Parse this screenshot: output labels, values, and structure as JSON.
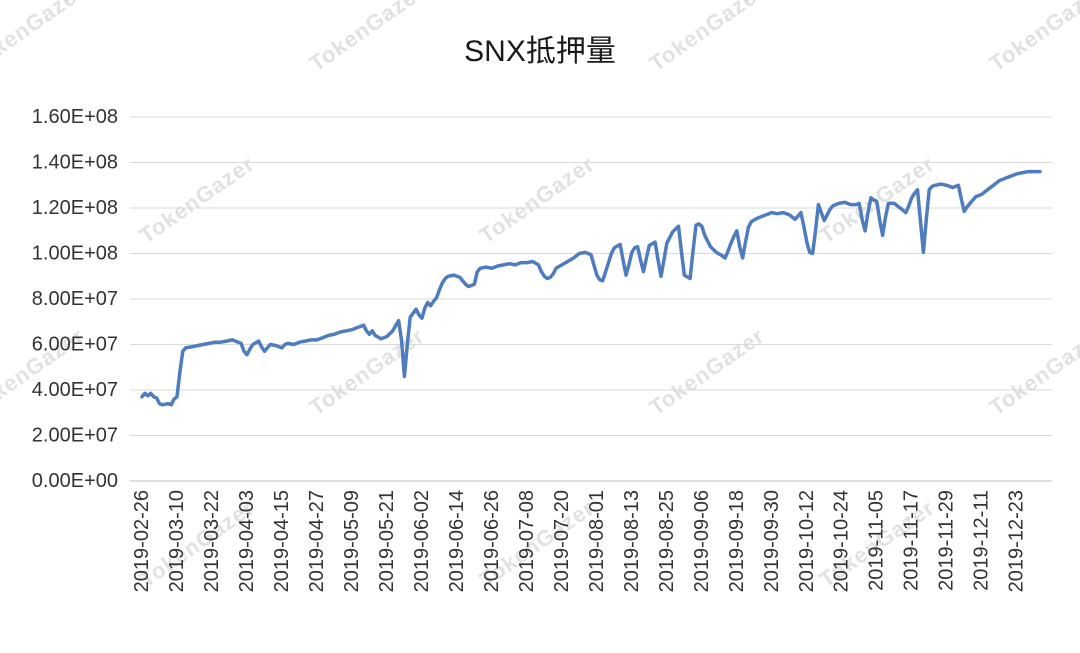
{
  "page": {
    "watermark_text": "TokenGazer"
  },
  "chart_data": {
    "type": "line",
    "title": "SNX抵押量",
    "xlabel": "",
    "ylabel": "",
    "legend": "none",
    "grid": true,
    "line_color": "#4E7CBF",
    "ylim": [
      0,
      160000000
    ],
    "y_tick_labels": [
      "0.00E+00",
      "2.00E+07",
      "4.00E+07",
      "6.00E+07",
      "8.00E+07",
      "1.00E+08",
      "1.20E+08",
      "1.40E+08",
      "1.60E+08"
    ],
    "x_tick_labels": [
      "2019-02-26",
      "2019-03-10",
      "2019-03-22",
      "2019-04-03",
      "2019-04-15",
      "2019-04-27",
      "2019-05-09",
      "2019-05-21",
      "2019-06-02",
      "2019-06-14",
      "2019-06-26",
      "2019-07-08",
      "2019-07-20",
      "2019-08-01",
      "2019-08-13",
      "2019-08-25",
      "2019-09-06",
      "2019-09-18",
      "2019-09-30",
      "2019-10-12",
      "2019-10-24",
      "2019-11-05",
      "2019-11-17",
      "2019-11-29",
      "2019-12-11",
      "2019-12-23"
    ],
    "series": [
      {
        "name": "SNX抵押量",
        "points": [
          [
            "2019-02-26",
            37000000
          ],
          [
            "2019-02-27",
            38500000
          ],
          [
            "2019-02-28",
            37500000
          ],
          [
            "2019-03-01",
            38500000
          ],
          [
            "2019-03-02",
            37000000
          ],
          [
            "2019-03-03",
            36500000
          ],
          [
            "2019-03-04",
            34000000
          ],
          [
            "2019-03-05",
            33500000
          ],
          [
            "2019-03-07",
            34000000
          ],
          [
            "2019-03-08",
            33500000
          ],
          [
            "2019-03-09",
            36000000
          ],
          [
            "2019-03-10",
            37000000
          ],
          [
            "2019-03-11",
            48000000
          ],
          [
            "2019-03-12",
            57000000
          ],
          [
            "2019-03-13",
            58500000
          ],
          [
            "2019-03-15",
            59000000
          ],
          [
            "2019-03-17",
            59500000
          ],
          [
            "2019-03-19",
            60000000
          ],
          [
            "2019-03-21",
            60500000
          ],
          [
            "2019-03-23",
            61000000
          ],
          [
            "2019-03-25",
            61000000
          ],
          [
            "2019-03-27",
            61500000
          ],
          [
            "2019-03-29",
            62000000
          ],
          [
            "2019-03-31",
            61000000
          ],
          [
            "2019-04-01",
            60500000
          ],
          [
            "2019-04-02",
            57000000
          ],
          [
            "2019-04-03",
            55500000
          ],
          [
            "2019-04-04",
            58000000
          ],
          [
            "2019-04-05",
            60000000
          ],
          [
            "2019-04-07",
            61500000
          ],
          [
            "2019-04-08",
            59000000
          ],
          [
            "2019-04-09",
            57000000
          ],
          [
            "2019-04-10",
            58500000
          ],
          [
            "2019-04-11",
            60000000
          ],
          [
            "2019-04-13",
            59500000
          ],
          [
            "2019-04-15",
            58500000
          ],
          [
            "2019-04-16",
            60000000
          ],
          [
            "2019-04-17",
            60500000
          ],
          [
            "2019-04-19",
            60000000
          ],
          [
            "2019-04-21",
            61000000
          ],
          [
            "2019-04-23",
            61500000
          ],
          [
            "2019-04-25",
            62000000
          ],
          [
            "2019-04-27",
            62000000
          ],
          [
            "2019-04-29",
            63000000
          ],
          [
            "2019-05-01",
            64000000
          ],
          [
            "2019-05-03",
            64500000
          ],
          [
            "2019-05-05",
            65500000
          ],
          [
            "2019-05-07",
            66000000
          ],
          [
            "2019-05-09",
            66500000
          ],
          [
            "2019-05-11",
            67500000
          ],
          [
            "2019-05-13",
            68500000
          ],
          [
            "2019-05-14",
            66000000
          ],
          [
            "2019-05-15",
            64500000
          ],
          [
            "2019-05-16",
            66000000
          ],
          [
            "2019-05-17",
            64000000
          ],
          [
            "2019-05-19",
            62500000
          ],
          [
            "2019-05-21",
            63500000
          ],
          [
            "2019-05-23",
            66000000
          ],
          [
            "2019-05-25",
            70500000
          ],
          [
            "2019-05-26",
            62000000
          ],
          [
            "2019-05-27",
            46000000
          ],
          [
            "2019-05-28",
            60000000
          ],
          [
            "2019-05-29",
            72000000
          ],
          [
            "2019-05-31",
            75500000
          ],
          [
            "2019-06-01",
            73000000
          ],
          [
            "2019-06-02",
            71500000
          ],
          [
            "2019-06-03",
            76000000
          ],
          [
            "2019-06-04",
            78500000
          ],
          [
            "2019-06-05",
            77000000
          ],
          [
            "2019-06-06",
            79000000
          ],
          [
            "2019-06-07",
            80500000
          ],
          [
            "2019-06-08",
            84000000
          ],
          [
            "2019-06-09",
            87000000
          ],
          [
            "2019-06-10",
            89000000
          ],
          [
            "2019-06-11",
            90000000
          ],
          [
            "2019-06-13",
            90500000
          ],
          [
            "2019-06-15",
            89500000
          ],
          [
            "2019-06-17",
            86500000
          ],
          [
            "2019-06-18",
            85500000
          ],
          [
            "2019-06-20",
            86500000
          ],
          [
            "2019-06-21",
            92000000
          ],
          [
            "2019-06-22",
            93500000
          ],
          [
            "2019-06-24",
            94000000
          ],
          [
            "2019-06-26",
            93500000
          ],
          [
            "2019-06-28",
            94500000
          ],
          [
            "2019-06-30",
            95000000
          ],
          [
            "2019-07-02",
            95500000
          ],
          [
            "2019-07-04",
            95000000
          ],
          [
            "2019-07-06",
            96000000
          ],
          [
            "2019-07-08",
            96000000
          ],
          [
            "2019-07-10",
            96500000
          ],
          [
            "2019-07-12",
            95000000
          ],
          [
            "2019-07-13",
            92000000
          ],
          [
            "2019-07-14",
            90000000
          ],
          [
            "2019-07-15",
            89000000
          ],
          [
            "2019-07-16",
            89500000
          ],
          [
            "2019-07-17",
            91000000
          ],
          [
            "2019-07-18",
            93500000
          ],
          [
            "2019-07-20",
            95000000
          ],
          [
            "2019-07-22",
            96500000
          ],
          [
            "2019-07-24",
            98000000
          ],
          [
            "2019-07-26",
            100000000
          ],
          [
            "2019-07-28",
            100500000
          ],
          [
            "2019-07-30",
            99500000
          ],
          [
            "2019-07-31",
            95000000
          ],
          [
            "2019-08-01",
            90500000
          ],
          [
            "2019-08-02",
            88500000
          ],
          [
            "2019-08-03",
            88000000
          ],
          [
            "2019-08-05",
            96000000
          ],
          [
            "2019-08-06",
            100000000
          ],
          [
            "2019-08-07",
            102500000
          ],
          [
            "2019-08-09",
            104000000
          ],
          [
            "2019-08-10",
            97000000
          ],
          [
            "2019-08-11",
            90500000
          ],
          [
            "2019-08-12",
            95000000
          ],
          [
            "2019-08-13",
            100500000
          ],
          [
            "2019-08-14",
            102500000
          ],
          [
            "2019-08-15",
            103000000
          ],
          [
            "2019-08-16",
            97000000
          ],
          [
            "2019-08-17",
            92000000
          ],
          [
            "2019-08-18",
            98000000
          ],
          [
            "2019-08-19",
            103500000
          ],
          [
            "2019-08-21",
            105000000
          ],
          [
            "2019-08-22",
            97000000
          ],
          [
            "2019-08-23",
            90000000
          ],
          [
            "2019-08-24",
            97000000
          ],
          [
            "2019-08-25",
            104500000
          ],
          [
            "2019-08-27",
            109500000
          ],
          [
            "2019-08-29",
            112000000
          ],
          [
            "2019-08-30",
            101000000
          ],
          [
            "2019-08-31",
            90500000
          ],
          [
            "2019-09-02",
            89000000
          ],
          [
            "2019-09-03",
            101000000
          ],
          [
            "2019-09-04",
            112500000
          ],
          [
            "2019-09-05",
            113000000
          ],
          [
            "2019-09-06",
            112000000
          ],
          [
            "2019-09-07",
            108000000
          ],
          [
            "2019-09-09",
            103000000
          ],
          [
            "2019-09-11",
            100500000
          ],
          [
            "2019-09-13",
            99000000
          ],
          [
            "2019-09-14",
            98000000
          ],
          [
            "2019-09-15",
            101000000
          ],
          [
            "2019-09-16",
            104500000
          ],
          [
            "2019-09-17",
            107500000
          ],
          [
            "2019-09-18",
            110000000
          ],
          [
            "2019-09-19",
            103000000
          ],
          [
            "2019-09-20",
            98000000
          ],
          [
            "2019-09-21",
            105000000
          ],
          [
            "2019-09-22",
            111500000
          ],
          [
            "2019-09-23",
            114000000
          ],
          [
            "2019-09-25",
            115500000
          ],
          [
            "2019-09-27",
            116500000
          ],
          [
            "2019-09-29",
            117500000
          ],
          [
            "2019-09-30",
            118000000
          ],
          [
            "2019-10-02",
            117500000
          ],
          [
            "2019-10-04",
            118000000
          ],
          [
            "2019-10-06",
            117000000
          ],
          [
            "2019-10-08",
            115000000
          ],
          [
            "2019-10-10",
            118000000
          ],
          [
            "2019-10-11",
            112000000
          ],
          [
            "2019-10-12",
            105000000
          ],
          [
            "2019-10-13",
            100500000
          ],
          [
            "2019-10-14",
            100000000
          ],
          [
            "2019-10-15",
            110000000
          ],
          [
            "2019-10-16",
            121500000
          ],
          [
            "2019-10-17",
            118000000
          ],
          [
            "2019-10-18",
            114500000
          ],
          [
            "2019-10-19",
            117000000
          ],
          [
            "2019-10-20",
            119500000
          ],
          [
            "2019-10-21",
            121000000
          ],
          [
            "2019-10-23",
            122000000
          ],
          [
            "2019-10-25",
            122500000
          ],
          [
            "2019-10-27",
            121500000
          ],
          [
            "2019-10-29",
            121500000
          ],
          [
            "2019-10-30",
            122000000
          ],
          [
            "2019-10-31",
            115000000
          ],
          [
            "2019-11-01",
            110000000
          ],
          [
            "2019-11-02",
            118000000
          ],
          [
            "2019-11-03",
            124500000
          ],
          [
            "2019-11-04",
            123500000
          ],
          [
            "2019-11-05",
            123000000
          ],
          [
            "2019-11-06",
            115000000
          ],
          [
            "2019-11-07",
            108000000
          ],
          [
            "2019-11-08",
            116000000
          ],
          [
            "2019-11-09",
            122000000
          ],
          [
            "2019-11-11",
            122000000
          ],
          [
            "2019-11-13",
            120000000
          ],
          [
            "2019-11-15",
            118000000
          ],
          [
            "2019-11-16",
            121000000
          ],
          [
            "2019-11-17",
            124500000
          ],
          [
            "2019-11-18",
            126500000
          ],
          [
            "2019-11-19",
            128000000
          ],
          [
            "2019-11-20",
            114000000
          ],
          [
            "2019-11-21",
            100500000
          ],
          [
            "2019-11-22",
            115000000
          ],
          [
            "2019-11-23",
            128000000
          ],
          [
            "2019-11-24",
            129500000
          ],
          [
            "2019-11-25",
            130000000
          ],
          [
            "2019-11-27",
            130500000
          ],
          [
            "2019-11-29",
            130000000
          ],
          [
            "2019-12-01",
            129000000
          ],
          [
            "2019-12-03",
            130000000
          ],
          [
            "2019-12-04",
            124000000
          ],
          [
            "2019-12-05",
            118500000
          ],
          [
            "2019-12-06",
            120500000
          ],
          [
            "2019-12-07",
            122000000
          ],
          [
            "2019-12-08",
            123500000
          ],
          [
            "2019-12-09",
            125000000
          ],
          [
            "2019-12-11",
            126000000
          ],
          [
            "2019-12-13",
            128000000
          ],
          [
            "2019-12-15",
            130000000
          ],
          [
            "2019-12-17",
            132000000
          ],
          [
            "2019-12-19",
            133000000
          ],
          [
            "2019-12-21",
            134000000
          ],
          [
            "2019-12-23",
            135000000
          ],
          [
            "2019-12-25",
            135500000
          ],
          [
            "2019-12-27",
            136000000
          ],
          [
            "2019-12-29",
            136000000
          ],
          [
            "2019-12-31",
            136000000
          ]
        ]
      }
    ]
  }
}
